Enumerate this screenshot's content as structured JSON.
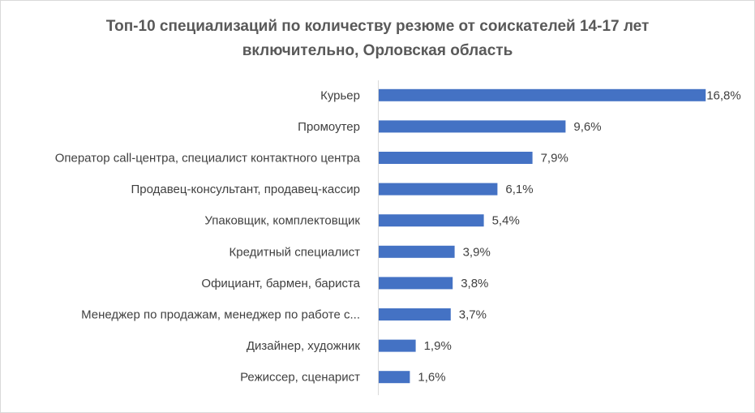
{
  "chart_data": {
    "type": "bar",
    "orientation": "horizontal",
    "title_lines": [
      "Топ-10 специализаций по количеству резюме от соискателей 14-17 лет",
      "включительно, Орловская область"
    ],
    "categories": [
      "Курьер",
      "Промоутер",
      "Оператор call-центра, специалист контактного центра",
      "Продавец-консультант, продавец-кассир",
      "Упаковщик, комплектовщик",
      "Кредитный специалист",
      "Официант, бармен, бариста",
      "Менеджер по продажам, менеджер по работе с...",
      "Дизайнер, художник",
      "Режиссер, сценарист"
    ],
    "values": [
      16.8,
      9.6,
      7.9,
      6.1,
      5.4,
      3.9,
      3.8,
      3.7,
      1.9,
      1.6
    ],
    "data_labels": [
      "16,8%",
      "9,6%",
      "7,9%",
      "6,1%",
      "5,4%",
      "3,9%",
      "3,8%",
      "3,7%",
      "1,9%",
      "1,6%"
    ],
    "unit": "%",
    "xlim": [
      0,
      17
    ],
    "grid": false,
    "legend": "none",
    "bar_color": "#4472c4",
    "text_color": "#404040",
    "title_color": "#595959"
  }
}
